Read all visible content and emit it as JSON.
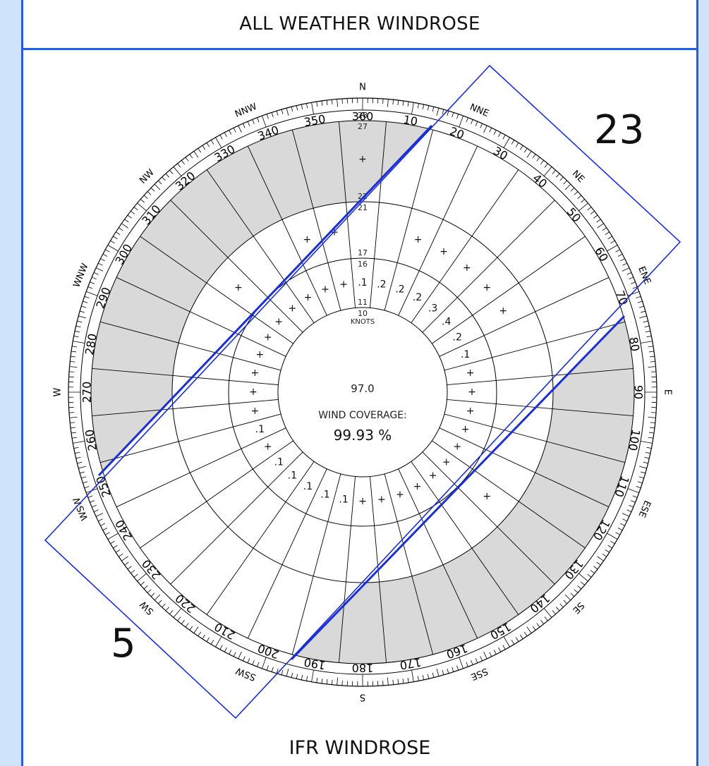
{
  "header": {
    "title": "ALL WEATHER WINDROSE"
  },
  "footer": {
    "title": "IFR WINDROSE"
  },
  "center": {
    "calm_value": "97.0",
    "coverage_label": "WIND COVERAGE:",
    "coverage_value": "99.93 %"
  },
  "runway": {
    "end_a": "23",
    "end_b": "5"
  },
  "rings": {
    "labels": [
      "10",
      "11",
      "16",
      "17",
      "21",
      "22",
      "27",
      "28"
    ],
    "units": "KNOTS"
  },
  "compass": {
    "cardinals": [
      "N",
      "NNE",
      "NE",
      "ENE",
      "E",
      "ESE",
      "SE",
      "SSE",
      "S",
      "SSW",
      "SW",
      "WSW",
      "W",
      "WNW",
      "NW",
      "NNW"
    ],
    "degrees": [
      "360",
      "10",
      "20",
      "30",
      "40",
      "50",
      "60",
      "70",
      "80",
      "90",
      "100",
      "110",
      "120",
      "130",
      "140",
      "150",
      "160",
      "170",
      "180",
      "190",
      "200",
      "210",
      "220",
      "230",
      "240",
      "250",
      "260",
      "270",
      "280",
      "290",
      "300",
      "310",
      "320",
      "330",
      "340",
      "350"
    ]
  },
  "sector_values": {
    "ring1": [
      ".1",
      ".2",
      ".2",
      ".2",
      ".3",
      ".4",
      ".2",
      ".1",
      "+",
      "+",
      "+",
      "+",
      "+",
      "+",
      "+",
      "+",
      "+",
      "+",
      "+",
      ".1",
      ".1",
      ".1",
      ".1",
      ".1",
      "+",
      ".1",
      "+",
      "+",
      "+",
      "+",
      "+",
      "+",
      "+",
      "+",
      "+",
      "+"
    ],
    "ring2": [
      "",
      "",
      "+",
      "+",
      "+",
      "+",
      "+",
      "",
      "",
      "",
      "",
      "",
      "",
      "+",
      "",
      "",
      "",
      "",
      "",
      "",
      "",
      "",
      "",
      "",
      "",
      "",
      "",
      "",
      "",
      "",
      "",
      "+",
      "",
      "",
      "+",
      "+"
    ],
    "ring3": [
      "+",
      "",
      "",
      "",
      "",
      "",
      "",
      "",
      "",
      "",
      "",
      "",
      "",
      "",
      "",
      "",
      "",
      "",
      "",
      "",
      "",
      "",
      "",
      "",
      "",
      "",
      "",
      "",
      "",
      "",
      "",
      "",
      "",
      "",
      "",
      ""
    ]
  }
}
